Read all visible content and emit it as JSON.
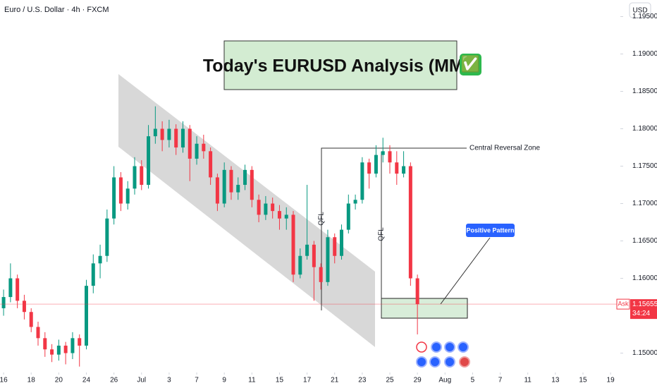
{
  "chart_data": {
    "type": "candlestick",
    "header": "Euro / U.S. Dollar · 4h · FXCM",
    "currency": "USD",
    "title": "Today's EURUSD Analysis (MMC)",
    "title_icon": "✅",
    "annotations": [
      "Central Reversal Zone",
      "QFL",
      "QFL",
      "Positive Pattern"
    ],
    "up_color": "#089981",
    "down_color": "#f23645",
    "x": [
      0,
      0.5,
      1,
      1.5,
      2,
      2.5,
      3,
      3.5,
      4,
      4.5,
      5,
      5.5,
      6,
      6.5,
      7,
      7.5,
      8,
      8.5,
      9,
      9.5,
      10,
      10.5,
      11,
      11.5,
      12,
      12.5,
      13,
      13.5,
      14,
      14.5,
      15,
      15.5,
      16,
      16.5,
      17,
      17.5,
      18,
      18.5,
      19,
      19.5,
      20,
      20.5,
      21,
      21.5,
      22,
      22.5,
      23,
      23.5,
      24,
      24.5,
      25,
      25.5,
      26,
      26.5,
      27,
      27.5,
      28,
      28.5,
      29,
      29.5,
      30
    ],
    "open": [
      1.156,
      1.1575,
      1.16,
      1.157,
      1.1555,
      1.1535,
      1.152,
      1.1505,
      1.1498,
      1.151,
      1.15,
      1.152,
      1.151,
      1.159,
      1.162,
      1.163,
      1.168,
      1.1735,
      1.17,
      1.172,
      1.175,
      1.1725,
      1.179,
      1.18,
      1.1785,
      1.18,
      1.1775,
      1.18,
      1.176,
      1.178,
      1.177,
      1.1735,
      1.17,
      1.1745,
      1.1715,
      1.1725,
      1.1745,
      1.1705,
      1.1685,
      1.17,
      1.169,
      1.168,
      1.1685,
      1.1605,
      1.163,
      1.1645,
      1.1615,
      1.1595,
      1.1655,
      1.163,
      1.1665,
      1.17,
      1.1705,
      1.1755,
      1.174,
      1.1765,
      1.177,
      1.1755,
      1.174,
      1.175,
      1.16
    ],
    "high": [
      1.1585,
      1.162,
      1.1605,
      1.1578,
      1.156,
      1.1542,
      1.1528,
      1.1512,
      1.1518,
      1.1515,
      1.1528,
      1.1525,
      1.1598,
      1.1632,
      1.1645,
      1.1692,
      1.175,
      1.1742,
      1.173,
      1.1762,
      1.1758,
      1.1805,
      1.183,
      1.181,
      1.1812,
      1.1806,
      1.181,
      1.1805,
      1.179,
      1.1792,
      1.1775,
      1.174,
      1.1755,
      1.175,
      1.1735,
      1.1752,
      1.175,
      1.1712,
      1.171,
      1.1708,
      1.1698,
      1.1695,
      1.169,
      1.164,
      1.1725,
      1.165,
      1.162,
      1.1665,
      1.166,
      1.1672,
      1.1712,
      1.1712,
      1.1762,
      1.176,
      1.1778,
      1.1788,
      1.1778,
      1.177,
      1.177,
      1.1755,
      1.1605
    ],
    "low": [
      1.155,
      1.1568,
      1.156,
      1.1545,
      1.1528,
      1.151,
      1.1495,
      1.1488,
      1.149,
      1.1485,
      1.1492,
      1.1482,
      1.1505,
      1.158,
      1.16,
      1.1622,
      1.1672,
      1.169,
      1.1692,
      1.1712,
      1.1718,
      1.172,
      1.178,
      1.177,
      1.1775,
      1.1765,
      1.1768,
      1.173,
      1.1752,
      1.176,
      1.1725,
      1.169,
      1.1695,
      1.1705,
      1.1705,
      1.1718,
      1.1695,
      1.1675,
      1.1678,
      1.168,
      1.1665,
      1.1665,
      1.1595,
      1.16,
      1.1625,
      1.157,
      1.1585,
      1.159,
      1.162,
      1.1625,
      1.166,
      1.1692,
      1.17,
      1.172,
      1.1735,
      1.1755,
      1.174,
      1.1725,
      1.1735,
      1.159,
      1.1525
    ],
    "close": [
      1.1575,
      1.16,
      1.157,
      1.1555,
      1.1535,
      1.152,
      1.1505,
      1.1498,
      1.151,
      1.15,
      1.152,
      1.151,
      1.159,
      1.162,
      1.163,
      1.168,
      1.1735,
      1.17,
      1.172,
      1.175,
      1.1725,
      1.179,
      1.18,
      1.1785,
      1.18,
      1.1775,
      1.18,
      1.176,
      1.178,
      1.177,
      1.1735,
      1.17,
      1.1745,
      1.1715,
      1.1725,
      1.1745,
      1.1705,
      1.1685,
      1.17,
      1.169,
      1.168,
      1.1685,
      1.1605,
      1.163,
      1.1645,
      1.1615,
      1.1595,
      1.1655,
      1.163,
      1.1665,
      1.17,
      1.1705,
      1.1755,
      1.174,
      1.1765,
      1.177,
      1.1755,
      1.174,
      1.175,
      1.16,
      1.15655
    ],
    "xlim": [
      -0.26,
      44.71
    ],
    "xticks": [
      {
        "value": 0,
        "label": "16"
      },
      {
        "value": 2,
        "label": "18"
      },
      {
        "value": 4,
        "label": "20"
      },
      {
        "value": 6,
        "label": "24"
      },
      {
        "value": 8,
        "label": "26"
      },
      {
        "value": 10,
        "label": "Jul"
      },
      {
        "value": 12,
        "label": "3"
      },
      {
        "value": 14,
        "label": "7"
      },
      {
        "value": 16,
        "label": "9"
      },
      {
        "value": 18,
        "label": "11"
      },
      {
        "value": 20,
        "label": "15"
      },
      {
        "value": 22,
        "label": "17"
      },
      {
        "value": 24,
        "label": "21"
      },
      {
        "value": 26,
        "label": "23"
      },
      {
        "value": 28,
        "label": "25"
      },
      {
        "value": 30,
        "label": "29"
      },
      {
        "value": 32,
        "label": "Aug"
      },
      {
        "value": 34,
        "label": "5"
      },
      {
        "value": 36,
        "label": "7"
      },
      {
        "value": 38,
        "label": "11"
      },
      {
        "value": 40,
        "label": "13"
      },
      {
        "value": 42,
        "label": "15"
      },
      {
        "value": 44,
        "label": "19"
      }
    ],
    "ylim": [
      1.14741,
      1.19722
    ],
    "yticks": [
      {
        "value": 1.195,
        "label": "1.19500"
      },
      {
        "value": 1.19,
        "label": "1.19000"
      },
      {
        "value": 1.185,
        "label": "1.18500"
      },
      {
        "value": 1.18,
        "label": "1.18000"
      },
      {
        "value": 1.175,
        "label": "1.17500"
      },
      {
        "value": 1.17,
        "label": "1.17000"
      },
      {
        "value": 1.165,
        "label": "1.16500"
      },
      {
        "value": 1.16,
        "label": "1.16000"
      },
      {
        "value": 1.15,
        "label": "1.15000"
      }
    ],
    "last_price": {
      "tag": "Ask",
      "value": 1.15655,
      "countdown": "34:24",
      "color": "#f23645"
    }
  }
}
